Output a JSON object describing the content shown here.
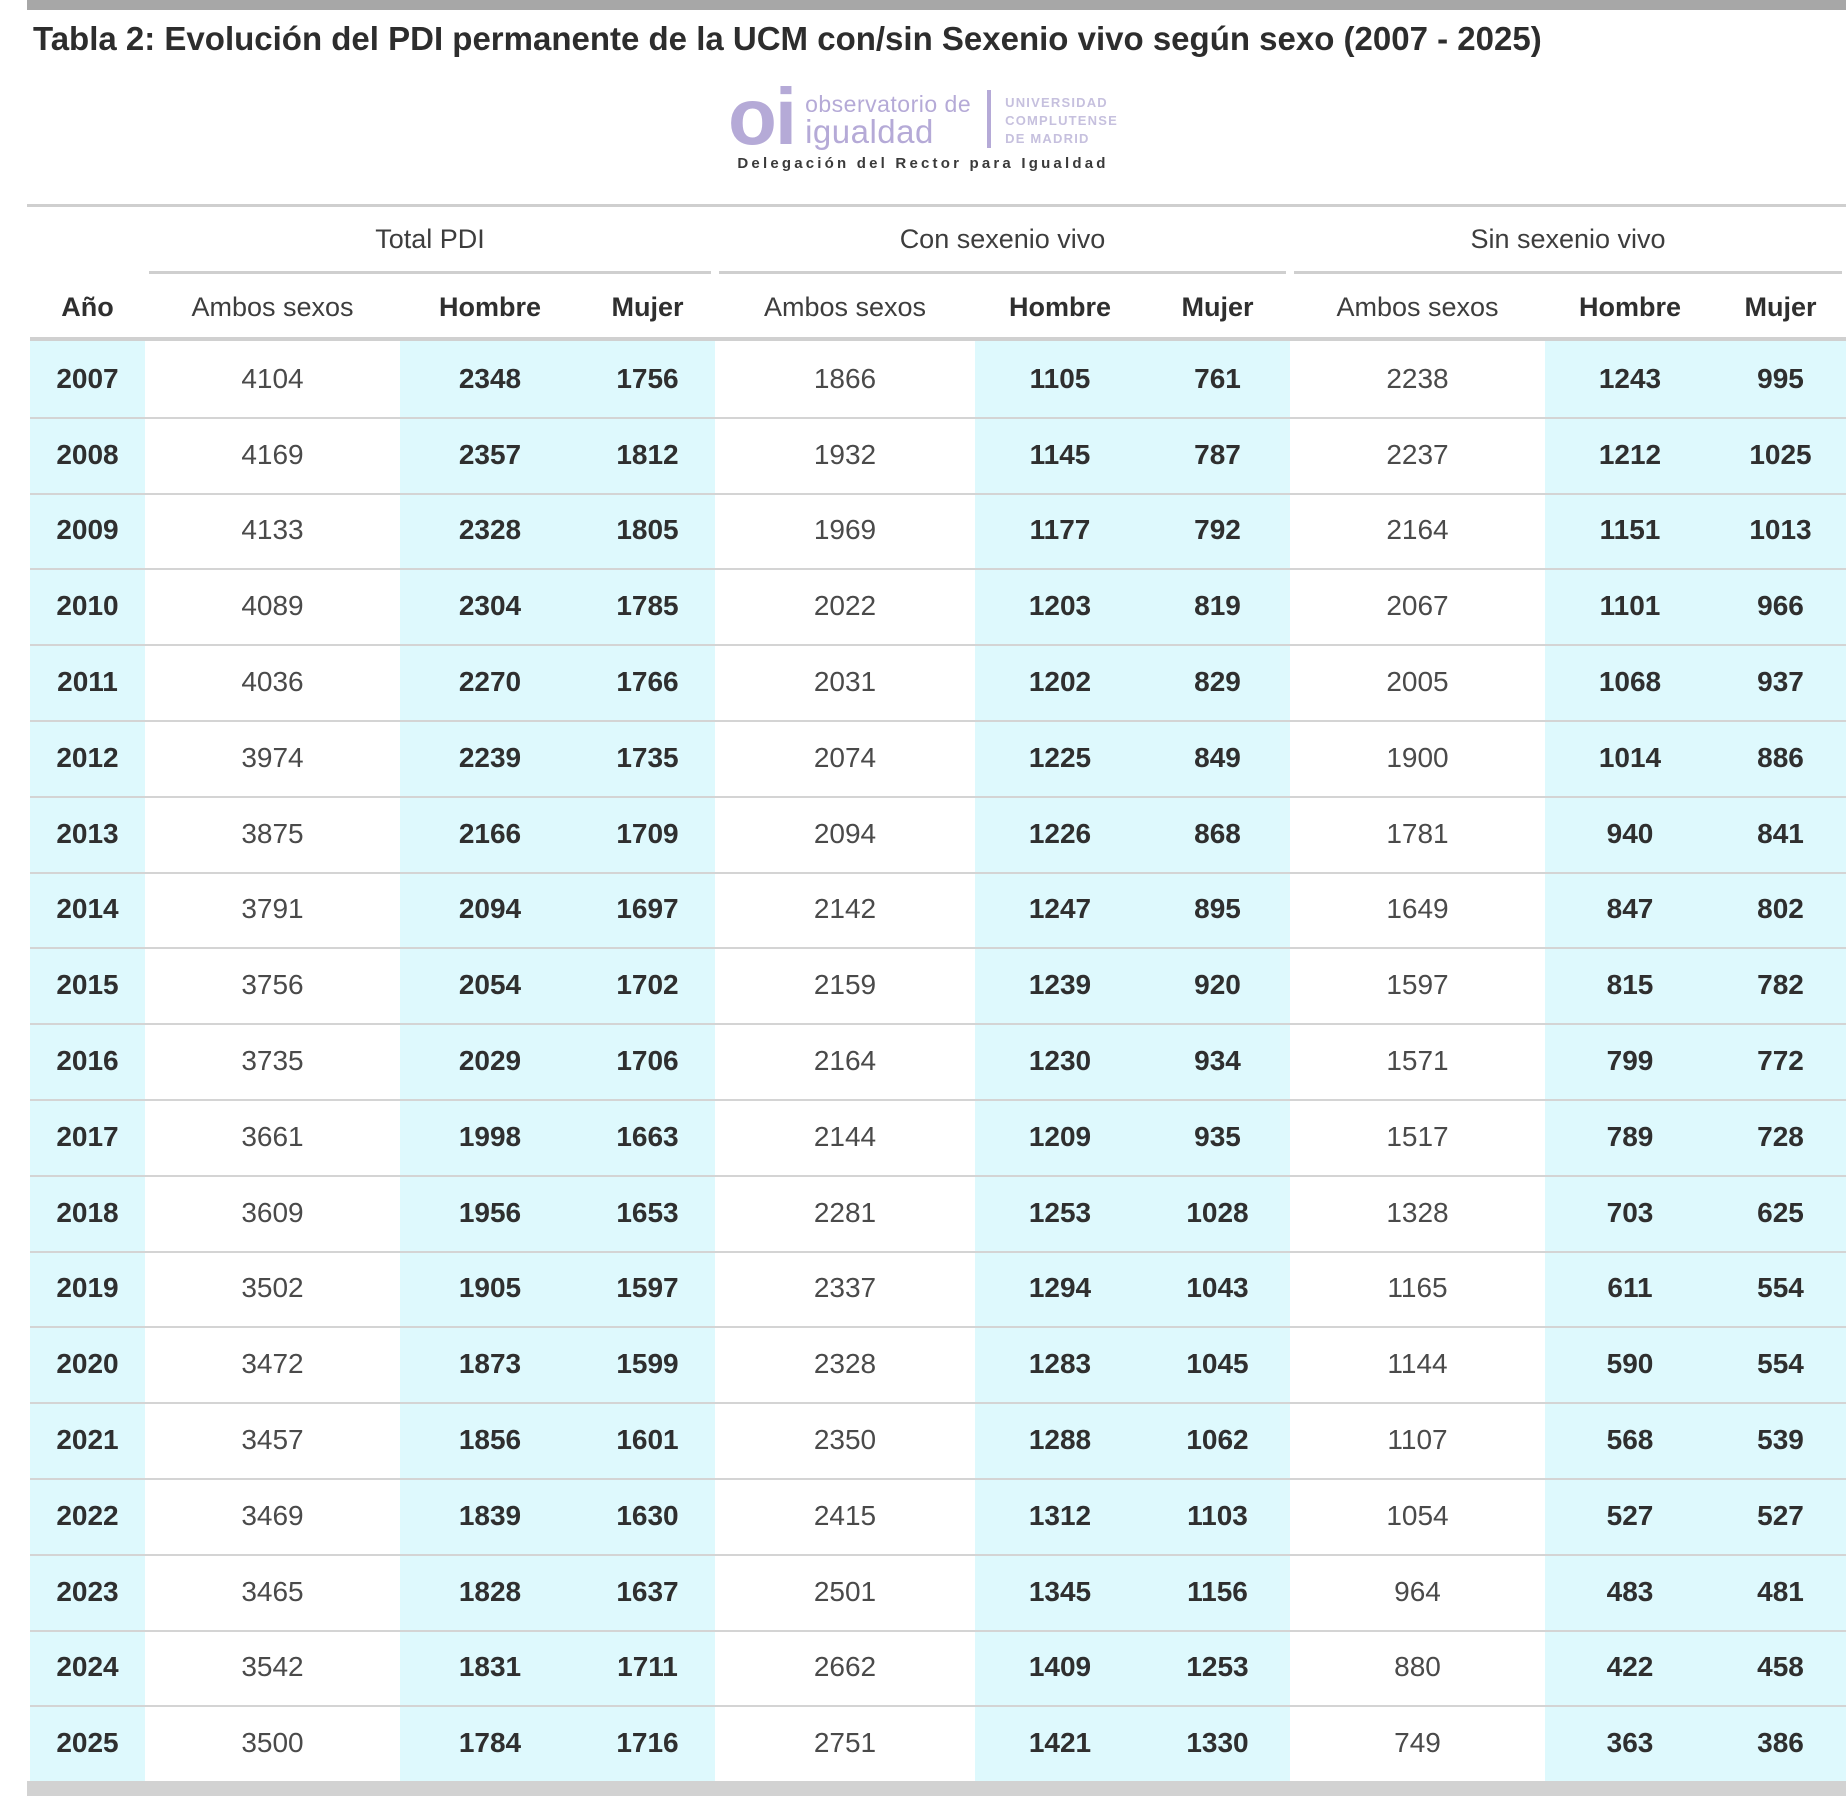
{
  "title": "Tabla 2: Evolución del PDI permanente de la UCM con/sin Sexenio vivo según sexo (2007 - 2025)",
  "logo": {
    "oi": "oi",
    "line1": "observatorio de",
    "line2": "igualdad",
    "university": [
      "UNIVERSIDAD",
      "COMPLUTENSE",
      "DE MADRID"
    ],
    "tagline": "Delegación del Rector para Igualdad",
    "purple": "#b5aad7",
    "light_purple": "#c6c0de"
  },
  "colors": {
    "highlight_cyan": "#def9fd",
    "rule_gray": "#d0d0d0",
    "top_bar_gray": "#a7a7a7",
    "bottom_bar_gray": "#d2d2d2"
  },
  "chart_data": {
    "type": "table",
    "title": "Tabla 2: Evolución del PDI permanente de la UCM con/sin Sexenio vivo según sexo (2007 - 2025)",
    "year_header": "Año",
    "groups": [
      {
        "label": "Total PDI",
        "sub": [
          "Ambos sexos",
          "Hombre",
          "Mujer"
        ]
      },
      {
        "label": "Con sexenio vivo",
        "sub": [
          "Ambos sexos",
          "Hombre",
          "Mujer"
        ]
      },
      {
        "label": "Sin sexenio vivo",
        "sub": [
          "Ambos sexos",
          "Hombre",
          "Mujer"
        ]
      }
    ],
    "highlighted_columns": [
      "Año",
      "Hombre",
      "Mujer"
    ],
    "rows": [
      {
        "year": "2007",
        "values": [
          4104,
          2348,
          1756,
          1866,
          1105,
          761,
          2238,
          1243,
          995
        ]
      },
      {
        "year": "2008",
        "values": [
          4169,
          2357,
          1812,
          1932,
          1145,
          787,
          2237,
          1212,
          1025
        ]
      },
      {
        "year": "2009",
        "values": [
          4133,
          2328,
          1805,
          1969,
          1177,
          792,
          2164,
          1151,
          1013
        ]
      },
      {
        "year": "2010",
        "values": [
          4089,
          2304,
          1785,
          2022,
          1203,
          819,
          2067,
          1101,
          966
        ]
      },
      {
        "year": "2011",
        "values": [
          4036,
          2270,
          1766,
          2031,
          1202,
          829,
          2005,
          1068,
          937
        ]
      },
      {
        "year": "2012",
        "values": [
          3974,
          2239,
          1735,
          2074,
          1225,
          849,
          1900,
          1014,
          886
        ]
      },
      {
        "year": "2013",
        "values": [
          3875,
          2166,
          1709,
          2094,
          1226,
          868,
          1781,
          940,
          841
        ]
      },
      {
        "year": "2014",
        "values": [
          3791,
          2094,
          1697,
          2142,
          1247,
          895,
          1649,
          847,
          802
        ]
      },
      {
        "year": "2015",
        "values": [
          3756,
          2054,
          1702,
          2159,
          1239,
          920,
          1597,
          815,
          782
        ]
      },
      {
        "year": "2016",
        "values": [
          3735,
          2029,
          1706,
          2164,
          1230,
          934,
          1571,
          799,
          772
        ]
      },
      {
        "year": "2017",
        "values": [
          3661,
          1998,
          1663,
          2144,
          1209,
          935,
          1517,
          789,
          728
        ]
      },
      {
        "year": "2018",
        "values": [
          3609,
          1956,
          1653,
          2281,
          1253,
          1028,
          1328,
          703,
          625
        ]
      },
      {
        "year": "2019",
        "values": [
          3502,
          1905,
          1597,
          2337,
          1294,
          1043,
          1165,
          611,
          554
        ]
      },
      {
        "year": "2020",
        "values": [
          3472,
          1873,
          1599,
          2328,
          1283,
          1045,
          1144,
          590,
          554
        ]
      },
      {
        "year": "2021",
        "values": [
          3457,
          1856,
          1601,
          2350,
          1288,
          1062,
          1107,
          568,
          539
        ]
      },
      {
        "year": "2022",
        "values": [
          3469,
          1839,
          1630,
          2415,
          1312,
          1103,
          1054,
          527,
          527
        ]
      },
      {
        "year": "2023",
        "values": [
          3465,
          1828,
          1637,
          2501,
          1345,
          1156,
          964,
          483,
          481
        ]
      },
      {
        "year": "2024",
        "values": [
          3542,
          1831,
          1711,
          2662,
          1409,
          1253,
          880,
          422,
          458
        ]
      },
      {
        "year": "2025",
        "values": [
          3500,
          1784,
          1716,
          2751,
          1421,
          1330,
          749,
          363,
          386
        ]
      }
    ]
  }
}
